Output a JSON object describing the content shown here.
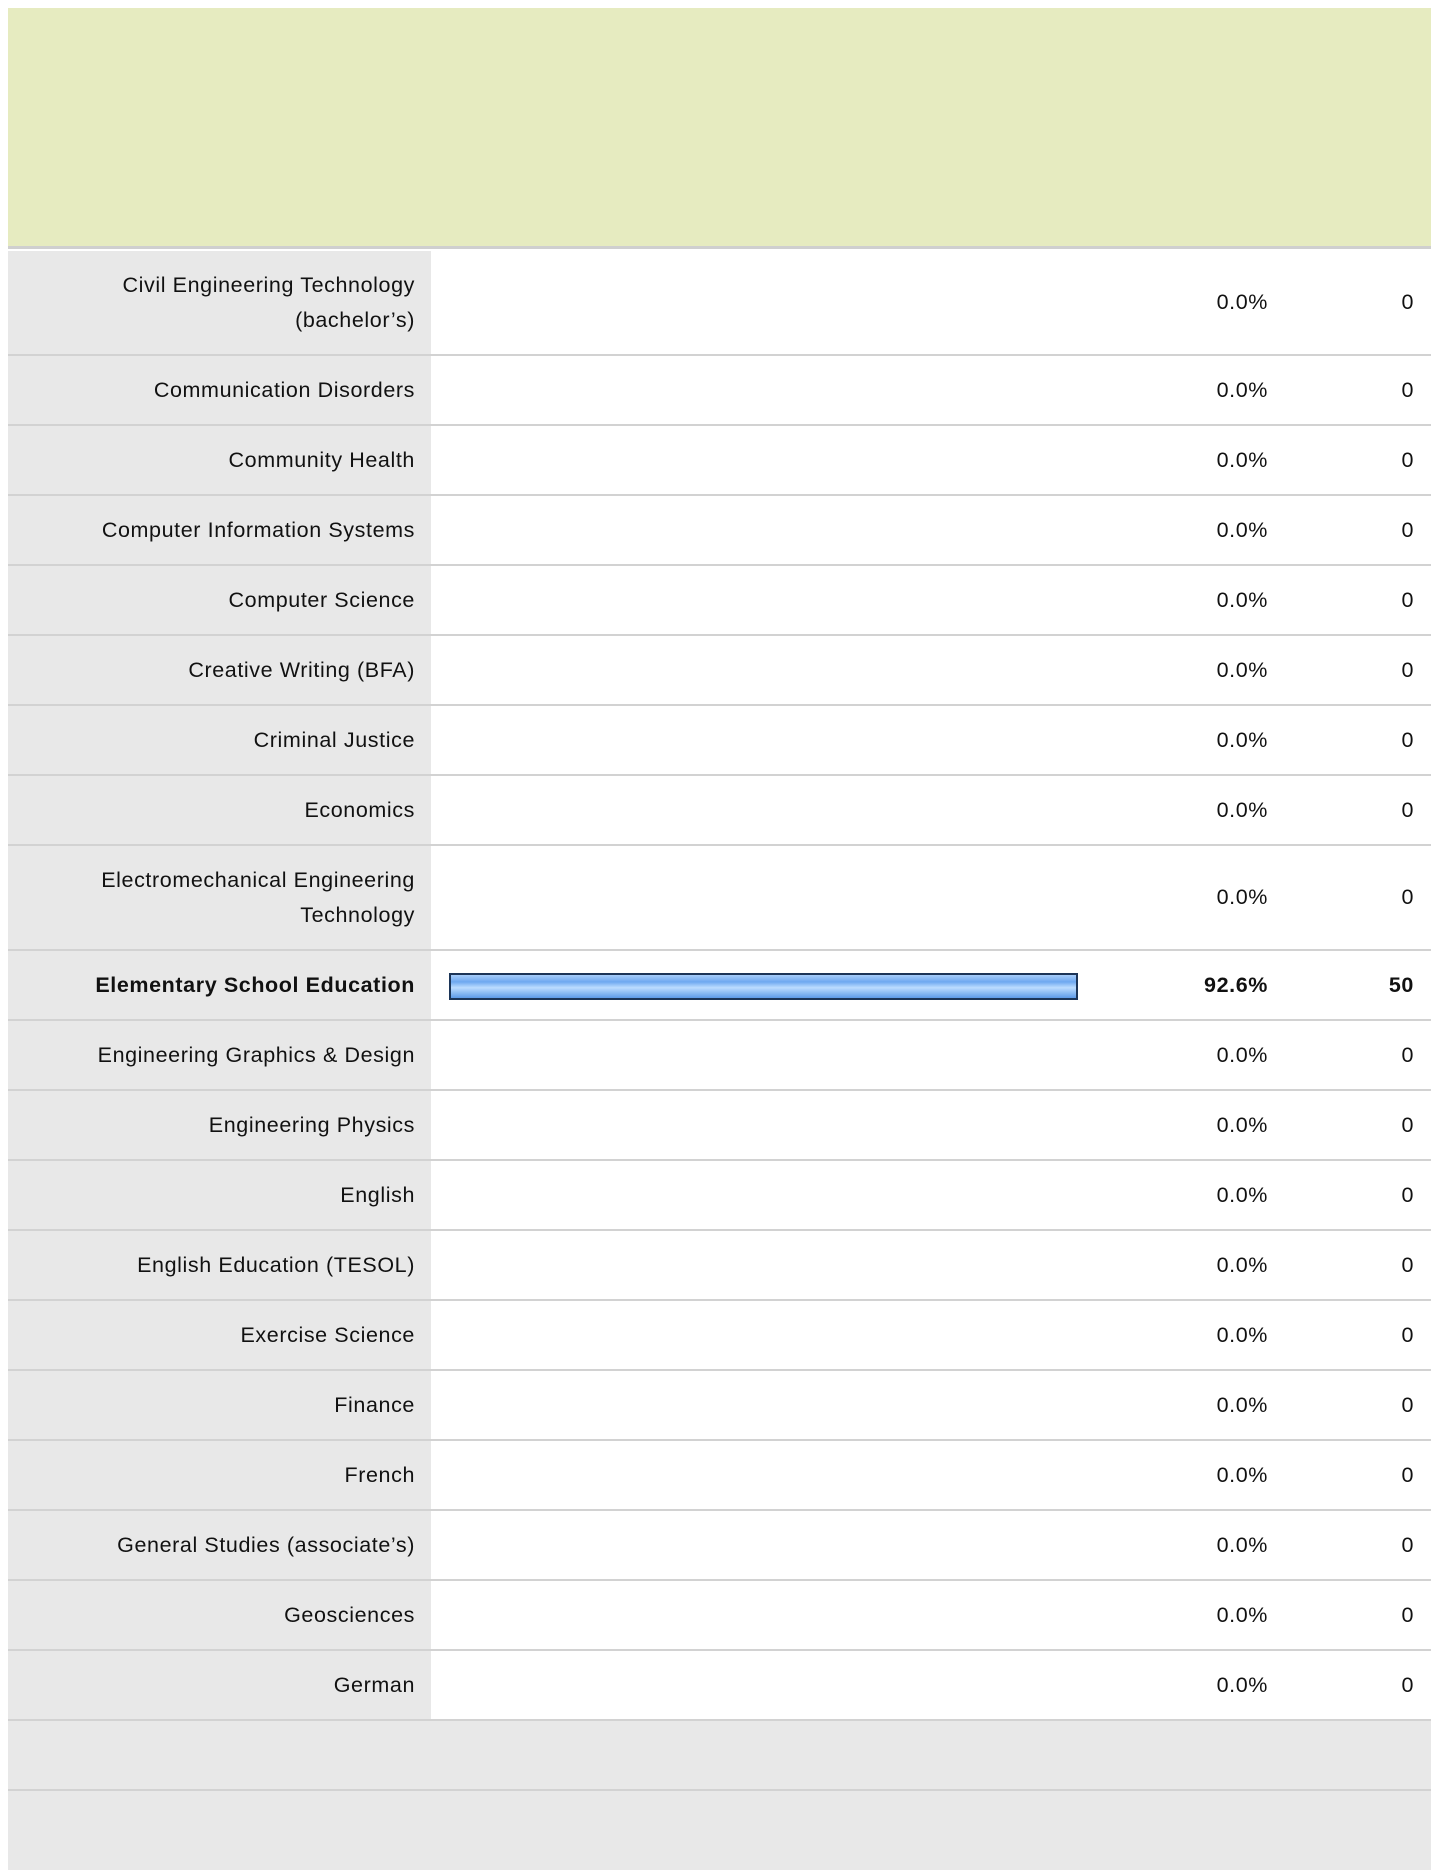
{
  "table": {
    "rows": [
      {
        "label": "Civil Engineering Technology (bachelor’s)",
        "share": 0.0,
        "share_label": "0.0%",
        "count": 0
      },
      {
        "label": "Communication Disorders",
        "share": 0.0,
        "share_label": "0.0%",
        "count": 0
      },
      {
        "label": "Community Health",
        "share": 0.0,
        "share_label": "0.0%",
        "count": 0
      },
      {
        "label": "Computer Information Systems",
        "share": 0.0,
        "share_label": "0.0%",
        "count": 0
      },
      {
        "label": "Computer Science",
        "share": 0.0,
        "share_label": "0.0%",
        "count": 0
      },
      {
        "label": "Creative Writing (BFA)",
        "share": 0.0,
        "share_label": "0.0%",
        "count": 0
      },
      {
        "label": "Criminal Justice",
        "share": 0.0,
        "share_label": "0.0%",
        "count": 0
      },
      {
        "label": "Economics",
        "share": 0.0,
        "share_label": "0.0%",
        "count": 0
      },
      {
        "label": "Electromechanical Engineering Technology",
        "share": 0.0,
        "share_label": "0.0%",
        "count": 0
      },
      {
        "label": "Elementary School Education",
        "share": 92.6,
        "share_label": "92.6%",
        "count": 50
      },
      {
        "label": "Engineering Graphics & Design",
        "share": 0.0,
        "share_label": "0.0%",
        "count": 0
      },
      {
        "label": "Engineering Physics",
        "share": 0.0,
        "share_label": "0.0%",
        "count": 0
      },
      {
        "label": "English",
        "share": 0.0,
        "share_label": "0.0%",
        "count": 0
      },
      {
        "label": "English Education (TESOL)",
        "share": 0.0,
        "share_label": "0.0%",
        "count": 0
      },
      {
        "label": "Exercise Science",
        "share": 0.0,
        "share_label": "0.0%",
        "count": 0
      },
      {
        "label": "Finance",
        "share": 0.0,
        "share_label": "0.0%",
        "count": 0
      },
      {
        "label": "French",
        "share": 0.0,
        "share_label": "0.0%",
        "count": 0
      },
      {
        "label": "General Studies (associate’s)",
        "share": 0.0,
        "share_label": "0.0%",
        "count": 0
      },
      {
        "label": "Geosciences",
        "share": 0.0,
        "share_label": "0.0%",
        "count": 0
      },
      {
        "label": "German",
        "share": 0.0,
        "share_label": "0.0%",
        "count": 0
      }
    ]
  }
}
